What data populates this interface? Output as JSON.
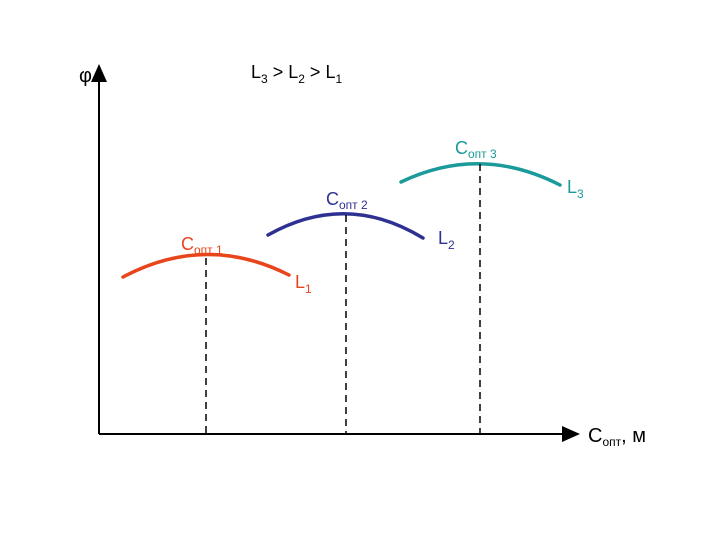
{
  "heading": {
    "l3": "L",
    "l3_sub": "3",
    "gt1": " > ",
    "l2": "L",
    "l2_sub": "2",
    "gt2": " > ",
    "l1": "L",
    "l1_sub": "1"
  },
  "axes": {
    "y_label": "φ",
    "x_label_main": "C",
    "x_label_sub": "опт",
    "x_label_unit": ", м"
  },
  "curves": [
    {
      "id": "curve-1",
      "color": "#e8451c",
      "peak_main": "C",
      "peak_sub": "опт 1",
      "end_main": "L",
      "end_sub": "1"
    },
    {
      "id": "curve-2",
      "color": "#2e3192",
      "peak_main": "C",
      "peak_sub": "опт 2",
      "end_main": "L",
      "end_sub": "2"
    },
    {
      "id": "curve-3",
      "color": "#1a9a9a",
      "peak_main": "C",
      "peak_sub": "опт 3",
      "end_main": "L",
      "end_sub": "3"
    }
  ]
}
